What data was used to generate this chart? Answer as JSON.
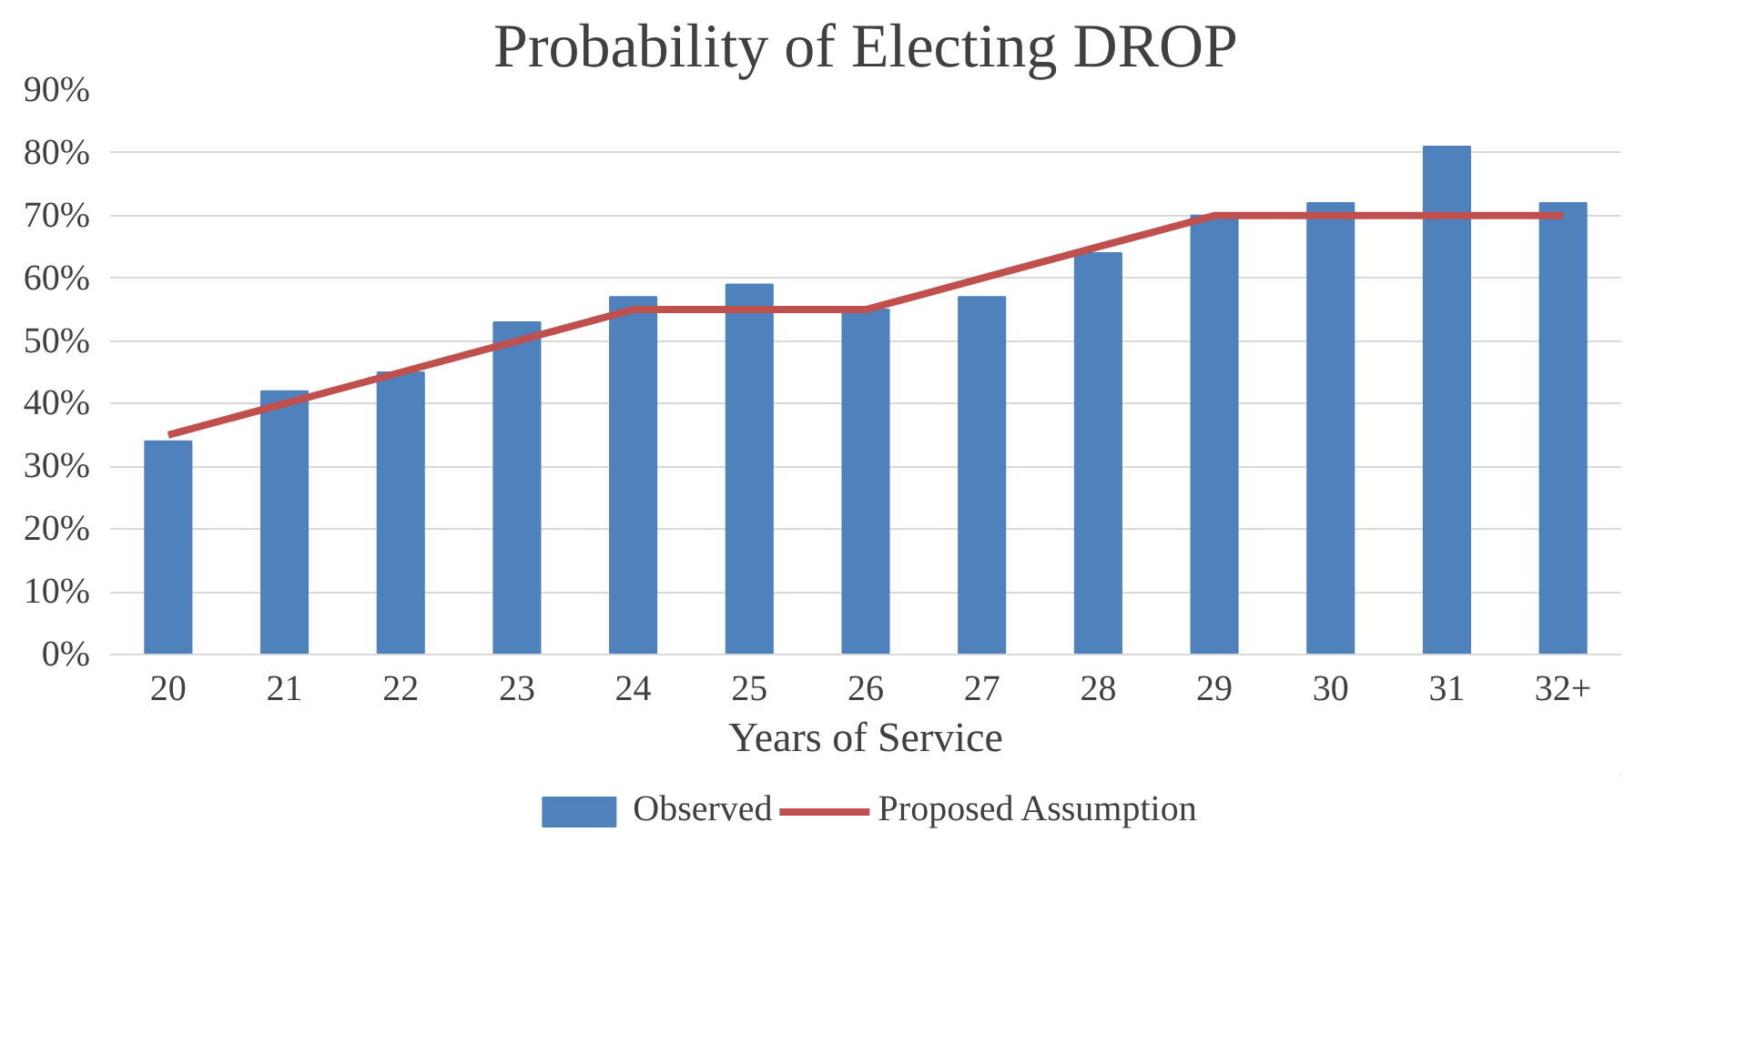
{
  "chart_data": {
    "type": "bar",
    "title": "Probability of Electing DROP",
    "xlabel": "Years of Service",
    "categories": [
      "20",
      "21",
      "22",
      "23",
      "24",
      "25",
      "26",
      "27",
      "28",
      "29",
      "30",
      "31",
      "32+"
    ],
    "series": [
      {
        "name": "Observed",
        "color": "#4f81bd",
        "values": [
          34,
          42,
          45,
          53,
          57,
          59,
          55,
          57,
          64,
          70,
          72,
          81,
          72
        ]
      },
      {
        "name": "Proposed Assumption",
        "type": "line",
        "color": "#c0504d",
        "values": [
          35,
          40,
          45,
          50,
          55,
          55,
          55,
          60,
          65,
          70,
          70,
          70,
          70
        ]
      }
    ],
    "ylim": [
      0,
      90
    ],
    "yticks": [
      {
        "value": 0,
        "label": "0%"
      },
      {
        "value": 10,
        "label": "10%"
      },
      {
        "value": 20,
        "label": "20%"
      },
      {
        "value": 30,
        "label": "30%"
      },
      {
        "value": 40,
        "label": "40%"
      },
      {
        "value": 50,
        "label": "50%"
      },
      {
        "value": 60,
        "label": "60%"
      },
      {
        "value": 70,
        "label": "70%"
      },
      {
        "value": 80,
        "label": "80%"
      },
      {
        "value": 90,
        "label": "90%"
      }
    ],
    "grid": "y",
    "legend": "bottom",
    "marker": "none",
    "line_style": "solid"
  }
}
